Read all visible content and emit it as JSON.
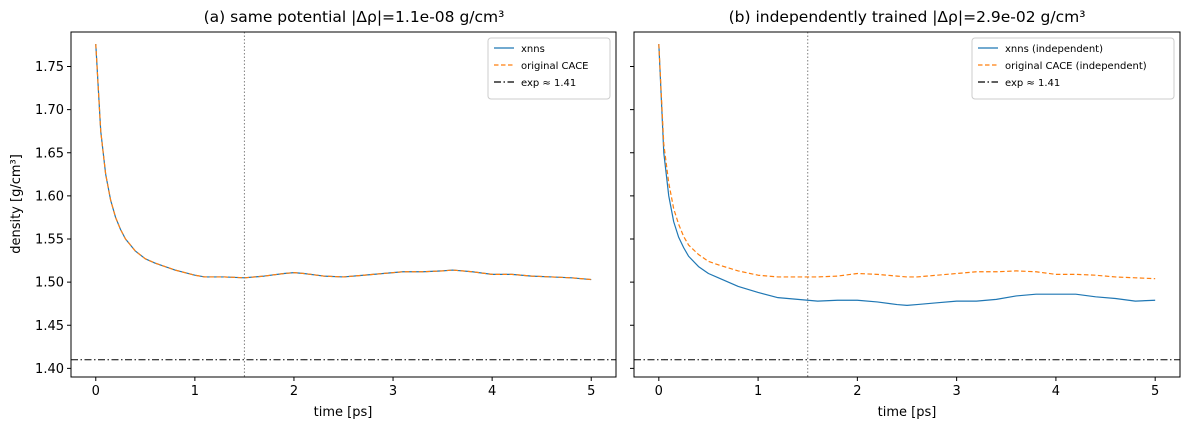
{
  "figure": {
    "panels": [
      {
        "id": "a",
        "title": "(a) same potential  |Δρ|=1.1e-08 g/cm³"
      },
      {
        "id": "b",
        "title": "(b) independently trained  |Δρ|=2.9e-02 g/cm³"
      }
    ]
  },
  "chart_data": [
    {
      "type": "line",
      "title": "(a) same potential  |Δρ|=1.1e-08 g/cm³",
      "xlabel": "time [ps]",
      "ylabel": "density [g/cm³]",
      "xlim": [
        -0.25,
        5.25
      ],
      "ylim": [
        1.39,
        1.79
      ],
      "xticks": [
        0,
        1,
        2,
        3,
        4,
        5
      ],
      "yticks": [
        1.4,
        1.45,
        1.5,
        1.55,
        1.6,
        1.65,
        1.7,
        1.75
      ],
      "ytick_labels": [
        "1.40",
        "1.45",
        "1.50",
        "1.55",
        "1.60",
        "1.65",
        "1.70",
        "1.75"
      ],
      "show_ytick_labels": true,
      "grid": false,
      "legend_position": "top-right",
      "vline_x": 1.5,
      "hline_y": 1.41,
      "x": [
        0,
        0.05,
        0.1,
        0.15,
        0.2,
        0.25,
        0.3,
        0.4,
        0.5,
        0.6,
        0.8,
        1.0,
        1.1,
        1.3,
        1.5,
        1.7,
        1.9,
        2.0,
        2.1,
        2.3,
        2.5,
        2.7,
        2.9,
        3.1,
        3.3,
        3.5,
        3.6,
        3.8,
        4.0,
        4.2,
        4.4,
        4.6,
        4.8,
        5.0
      ],
      "series": [
        {
          "name": "xnns",
          "color": "#1f77b4",
          "style": "solid",
          "values": [
            1.776,
            1.675,
            1.625,
            1.595,
            1.575,
            1.561,
            1.55,
            1.536,
            1.527,
            1.522,
            1.514,
            1.508,
            1.506,
            1.506,
            1.505,
            1.507,
            1.51,
            1.511,
            1.51,
            1.507,
            1.506,
            1.508,
            1.51,
            1.512,
            1.512,
            1.513,
            1.514,
            1.512,
            1.509,
            1.509,
            1.507,
            1.506,
            1.505,
            1.503
          ]
        },
        {
          "name": "original CACE",
          "color": "#ff7f0e",
          "style": "dashed",
          "values": [
            1.776,
            1.675,
            1.625,
            1.595,
            1.575,
            1.561,
            1.55,
            1.536,
            1.527,
            1.522,
            1.514,
            1.508,
            1.506,
            1.506,
            1.505,
            1.507,
            1.51,
            1.511,
            1.51,
            1.507,
            1.506,
            1.508,
            1.51,
            1.512,
            1.512,
            1.513,
            1.514,
            1.512,
            1.509,
            1.509,
            1.507,
            1.506,
            1.505,
            1.503
          ]
        },
        {
          "name": "exp ≈ 1.41",
          "color": "#000000",
          "style": "dashdot",
          "constant": 1.41
        }
      ]
    },
    {
      "type": "line",
      "title": "(b) independently trained  |Δρ|=2.9e-02 g/cm³",
      "xlabel": "time [ps]",
      "ylabel": "",
      "xlim": [
        -0.25,
        5.25
      ],
      "ylim": [
        1.39,
        1.79
      ],
      "xticks": [
        0,
        1,
        2,
        3,
        4,
        5
      ],
      "yticks": [
        1.4,
        1.45,
        1.5,
        1.55,
        1.6,
        1.65,
        1.7,
        1.75
      ],
      "show_ytick_labels": false,
      "grid": false,
      "legend_position": "top-right",
      "vline_x": 1.5,
      "hline_y": 1.41,
      "x": [
        0,
        0.05,
        0.1,
        0.15,
        0.2,
        0.25,
        0.3,
        0.4,
        0.5,
        0.6,
        0.8,
        1.0,
        1.2,
        1.4,
        1.6,
        1.8,
        2.0,
        2.2,
        2.4,
        2.5,
        2.6,
        2.8,
        3.0,
        3.2,
        3.4,
        3.6,
        3.8,
        4.0,
        4.2,
        4.4,
        4.6,
        4.8,
        5.0
      ],
      "series": [
        {
          "name": "xnns (independent)",
          "color": "#1f77b4",
          "style": "solid",
          "values": [
            1.776,
            1.65,
            1.6,
            1.57,
            1.552,
            1.54,
            1.53,
            1.518,
            1.51,
            1.505,
            1.495,
            1.488,
            1.482,
            1.48,
            1.478,
            1.479,
            1.479,
            1.477,
            1.474,
            1.473,
            1.474,
            1.476,
            1.478,
            1.478,
            1.48,
            1.484,
            1.486,
            1.486,
            1.486,
            1.483,
            1.481,
            1.478,
            1.479
          ]
        },
        {
          "name": "original CACE (independent)",
          "color": "#ff7f0e",
          "style": "dashed",
          "values": [
            1.776,
            1.66,
            1.615,
            1.585,
            1.567,
            1.553,
            1.543,
            1.532,
            1.524,
            1.52,
            1.513,
            1.508,
            1.506,
            1.506,
            1.506,
            1.507,
            1.51,
            1.509,
            1.507,
            1.506,
            1.506,
            1.508,
            1.51,
            1.512,
            1.512,
            1.513,
            1.512,
            1.509,
            1.509,
            1.508,
            1.506,
            1.505,
            1.504
          ]
        },
        {
          "name": "exp ≈ 1.41",
          "color": "#000000",
          "style": "dashdot",
          "constant": 1.41
        }
      ]
    }
  ]
}
